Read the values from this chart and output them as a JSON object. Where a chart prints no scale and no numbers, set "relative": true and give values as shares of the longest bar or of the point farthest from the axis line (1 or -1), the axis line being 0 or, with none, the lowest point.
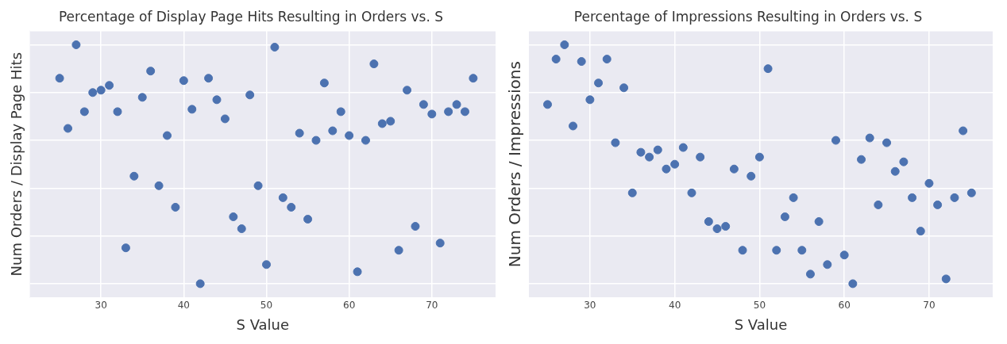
{
  "chart_data": [
    {
      "type": "scatter",
      "title": "Percentage of Display Page Hits Resulting in Orders vs. S",
      "xlabel": "S Value",
      "ylabel": "Num Orders / Display Page Hits",
      "color": "#4c72b0",
      "marker": "circle",
      "grid": true,
      "relative": true,
      "xlim": [
        21.4,
        77.7
      ],
      "xticks": [
        30,
        40,
        50,
        60,
        70
      ],
      "x": [
        25,
        26,
        27,
        28,
        29,
        30,
        31,
        32,
        33,
        34,
        35,
        36,
        37,
        38,
        39,
        40,
        41,
        42,
        43,
        44,
        45,
        46,
        47,
        48,
        49,
        50,
        51,
        52,
        53,
        54,
        55,
        56,
        57,
        58,
        59,
        60,
        61,
        62,
        63,
        64,
        65,
        66,
        67,
        68,
        69,
        70,
        71,
        72,
        73,
        74,
        75
      ],
      "values": [
        0.86,
        0.65,
        1,
        0.72,
        0.8,
        0.81,
        0.83,
        0.72,
        0.15,
        0.45,
        0.78,
        0.89,
        0.41,
        0.62,
        0.32,
        0.85,
        0.73,
        0,
        0.86,
        0.77,
        0.69,
        0.28,
        0.23,
        0.79,
        0.41,
        0.08,
        0.99,
        0.36,
        0.32,
        0.63,
        0.27,
        0.6,
        0.84,
        0.64,
        0.72,
        0.62,
        0.05,
        0.6,
        0.92,
        0.67,
        0.68,
        0.14,
        0.81,
        0.24,
        0.75,
        0.71,
        0.17,
        0.72,
        0.75,
        0.72,
        0.86
      ]
    },
    {
      "type": "scatter",
      "title": "Percentage of Impressions Resulting in Orders vs. S",
      "xlabel": "S Value",
      "ylabel": "Num Orders / Impressions",
      "color": "#4c72b0",
      "marker": "circle",
      "grid": true,
      "relative": true,
      "xlim": [
        22.8,
        77.5
      ],
      "xticks": [
        30,
        40,
        50,
        60,
        70
      ],
      "x": [
        25,
        26,
        27,
        28,
        29,
        30,
        31,
        32,
        33,
        34,
        35,
        36,
        37,
        38,
        39,
        40,
        41,
        42,
        43,
        44,
        45,
        46,
        47,
        48,
        49,
        50,
        51,
        52,
        53,
        54,
        55,
        56,
        57,
        58,
        59,
        60,
        61,
        62,
        63,
        64,
        65,
        66,
        67,
        68,
        69,
        70,
        71,
        72,
        73,
        74,
        75
      ],
      "values": [
        0.75,
        0.94,
        1,
        0.66,
        0.93,
        0.77,
        0.84,
        0.94,
        0.59,
        0.82,
        0.38,
        0.55,
        0.53,
        0.56,
        0.48,
        0.5,
        0.57,
        0.38,
        0.53,
        0.26,
        0.23,
        0.24,
        0.48,
        0.14,
        0.45,
        0.53,
        0.9,
        0.14,
        0.28,
        0.36,
        0.14,
        0.04,
        0.26,
        0.08,
        0.6,
        0.12,
        0,
        0.52,
        0.61,
        0.33,
        0.59,
        0.47,
        0.51,
        0.36,
        0.22,
        0.42,
        0.33,
        0.02,
        0.36,
        0.64,
        0.38
      ]
    }
  ]
}
